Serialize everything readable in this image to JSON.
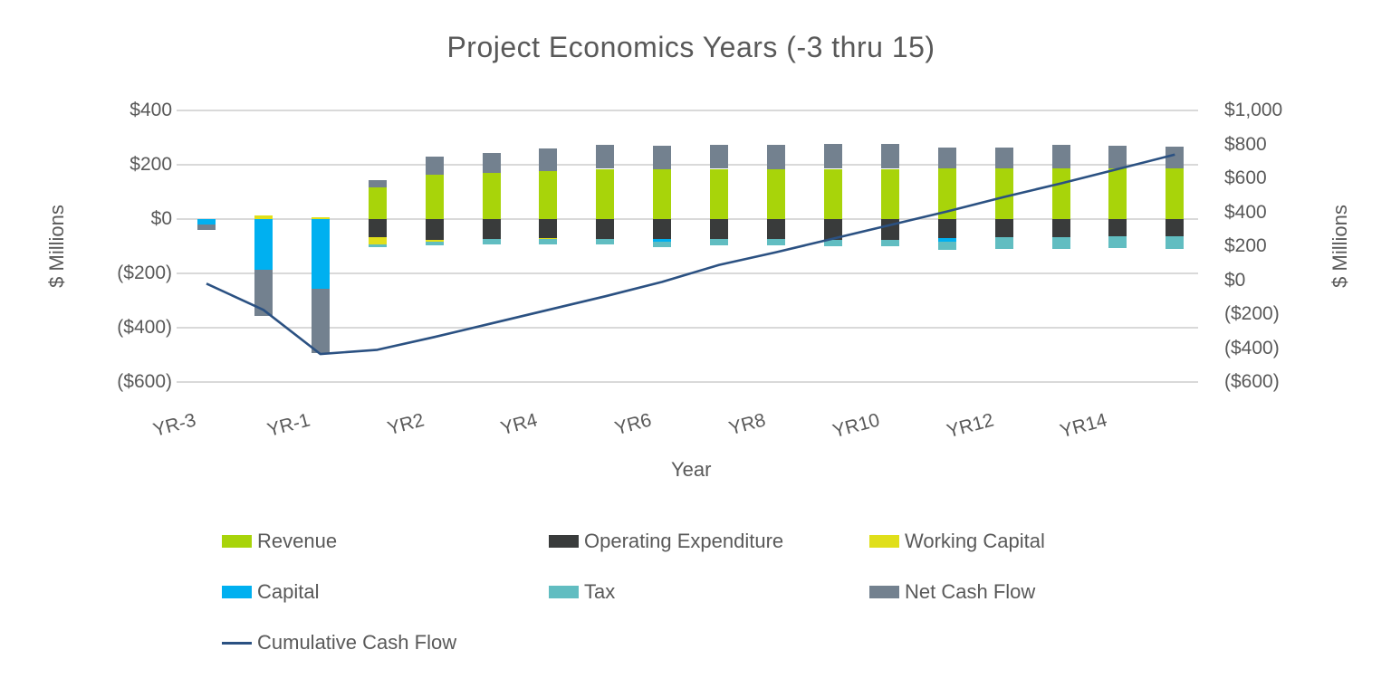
{
  "title": "Project Economics Years (-3 thru 15)",
  "chart_data": {
    "type": "bar",
    "subtype": "stacked-columns-with-cumulative-line",
    "title": "Project Economics Years (-3 thru 15)",
    "categories": [
      "YR-3",
      "YR-2",
      "YR-1",
      "YR1",
      "YR2",
      "YR3",
      "YR4",
      "YR5",
      "YR6",
      "YR7",
      "YR8",
      "YR9",
      "YR10",
      "YR11",
      "YR12",
      "YR13",
      "YR14",
      "YR15"
    ],
    "x_axis": {
      "label": "Year",
      "shown_tick_labels": [
        "YR-3",
        "YR-1",
        "YR2",
        "YR4",
        "YR6",
        "YR8",
        "YR10",
        "YR12",
        "YR14"
      ],
      "tick_every": 2
    },
    "left_axis": {
      "label": "$ Millions",
      "min": -600,
      "max": 400,
      "ticks": [
        {
          "label": "$400",
          "v": 400
        },
        {
          "label": "$200",
          "v": 200
        },
        {
          "label": "$0",
          "v": 0
        },
        {
          "label": "($200)",
          "v": -200
        },
        {
          "label": "($400)",
          "v": -400
        },
        {
          "label": "($600)",
          "v": -600
        }
      ]
    },
    "right_axis": {
      "label": "$ Millions",
      "min": -600,
      "max": 1000,
      "ticks": [
        {
          "label": "$1,000",
          "v": 1000
        },
        {
          "label": "$800",
          "v": 800
        },
        {
          "label": "$600",
          "v": 600
        },
        {
          "label": "$400",
          "v": 400
        },
        {
          "label": "$200",
          "v": 200
        },
        {
          "label": "$0",
          "v": 0
        },
        {
          "label": "($200)",
          "v": -200
        },
        {
          "label": "($400)",
          "v": -400
        },
        {
          "label": "($600)",
          "v": -600
        }
      ]
    },
    "series": [
      {
        "name": "Revenue",
        "color": "#a8d40a",
        "values": [
          0,
          0,
          0,
          117,
          163,
          170,
          178,
          185,
          185,
          185,
          185,
          185,
          185,
          187,
          187,
          187,
          187,
          187
        ]
      },
      {
        "name": "Operating Expenditure",
        "color": "#393b3b",
        "values": [
          0,
          0,
          0,
          -67,
          -78,
          -72,
          -70,
          -72,
          -72,
          -72,
          -72,
          -75,
          -75,
          -69,
          -67,
          -67,
          -63,
          -63
        ]
      },
      {
        "name": "Working Capital",
        "color": "#e0df1a",
        "values": [
          0,
          13,
          8,
          -26,
          -5,
          0,
          -3,
          0,
          0,
          0,
          0,
          0,
          0,
          0,
          0,
          0,
          0,
          0
        ]
      },
      {
        "name": "Capital",
        "color": "#00b0f0",
        "values": [
          -20,
          -185,
          -255,
          0,
          0,
          0,
          0,
          0,
          -10,
          0,
          0,
          0,
          0,
          -15,
          0,
          0,
          0,
          0
        ]
      },
      {
        "name": "Tax",
        "color": "#61bdc1",
        "values": [
          0,
          0,
          0,
          -10,
          -13,
          -20,
          -21,
          -22,
          -20,
          -25,
          -25,
          -25,
          -25,
          -30,
          -44,
          -44,
          -44,
          -48
        ]
      },
      {
        "name": "Net Cash Flow",
        "color": "#73818f",
        "values": [
          -20,
          -170,
          -237,
          26,
          68,
          75,
          83,
          89,
          85,
          87,
          90,
          91,
          91,
          75,
          77,
          86,
          83,
          80
        ]
      }
    ],
    "line_series": {
      "name": "Cumulative Cash Flow",
      "color": "#2b5182",
      "axis": "right",
      "values": [
        -20,
        -175,
        -435,
        -410,
        -335,
        -255,
        -175,
        -95,
        -10,
        90,
        165,
        245,
        325,
        405,
        490,
        570,
        655,
        740
      ]
    },
    "gridlines": "horizontal",
    "gridline_color": "#d9d9d9",
    "legend_position": "bottom",
    "legend_rows": [
      [
        "Revenue",
        "Operating Expenditure",
        "Working Capital"
      ],
      [
        "Capital",
        "Tax",
        "Net Cash Flow"
      ],
      [
        "Cumulative Cash Flow"
      ]
    ]
  }
}
